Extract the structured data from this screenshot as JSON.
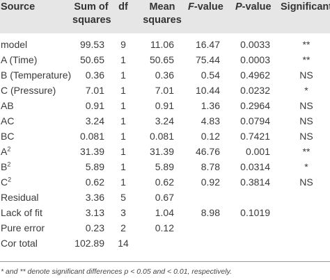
{
  "columns": {
    "source": "Source",
    "sum_of_squares_1": "Sum of",
    "sum_of_squares_2": "squares",
    "df": "df",
    "mean_squares_1": "Mean",
    "mean_squares_2": "squares",
    "f_value_letter": "F",
    "f_value_rest": "-value",
    "p_value_letter": "P",
    "p_value_rest": "-value",
    "significant": "Significant"
  },
  "rows": [
    {
      "source": "model",
      "sup": "",
      "ss": "99.53",
      "df": "9",
      "ms": "11.06",
      "f": "16.47",
      "p": "0.0033",
      "sig": "**"
    },
    {
      "source": "A (Time)",
      "sup": "",
      "ss": "50.65",
      "df": "1",
      "ms": "50.65",
      "f": "75.44",
      "p": "0.0003",
      "sig": "**"
    },
    {
      "source": "B (Temperature)",
      "sup": "",
      "ss": "0.36",
      "df": "1",
      "ms": "0.36",
      "f": "0.54",
      "p": "0.4962",
      "sig": "NS"
    },
    {
      "source": "C (Pressure)",
      "sup": "",
      "ss": "7.01",
      "df": "1",
      "ms": "7.01",
      "f": "10.44",
      "p": "0.0232",
      "sig": "*"
    },
    {
      "source": "AB",
      "sup": "",
      "ss": "0.91",
      "df": "1",
      "ms": "0.91",
      "f": "1.36",
      "p": "0.2964",
      "sig": "NS"
    },
    {
      "source": "AC",
      "sup": "",
      "ss": "3.24",
      "df": "1",
      "ms": "3.24",
      "f": "4.83",
      "p": "0.0794",
      "sig": "NS"
    },
    {
      "source": "BC",
      "sup": "",
      "ss": "0.081",
      "df": "1",
      "ms": "0.081",
      "f": "0.12",
      "p": "0.7421",
      "sig": "NS"
    },
    {
      "source": "A",
      "sup": "2",
      "ss": "31.39",
      "df": "1",
      "ms": "31.39",
      "f": "46.76",
      "p": "0.001",
      "sig": "**"
    },
    {
      "source": "B",
      "sup": "2",
      "ss": "5.89",
      "df": "1",
      "ms": "5.89",
      "f": "8.78",
      "p": "0.0314",
      "sig": "*"
    },
    {
      "source": "C",
      "sup": "2",
      "ss": "0.62",
      "df": "1",
      "ms": "0.62",
      "f": "0.92",
      "p": "0.3814",
      "sig": "NS"
    },
    {
      "source": "Residual",
      "sup": "",
      "ss": "3.36",
      "df": "5",
      "ms": "0.67",
      "f": "",
      "p": "",
      "sig": ""
    },
    {
      "source": "Lack of fit",
      "sup": "",
      "ss": "3.13",
      "df": "3",
      "ms": "1.04",
      "f": "8.98",
      "p": "0.1019",
      "sig": ""
    },
    {
      "source": "Pure error",
      "sup": "",
      "ss": "0.23",
      "df": "2",
      "ms": "0.12",
      "f": "",
      "p": "",
      "sig": ""
    },
    {
      "source": "Cor total",
      "sup": "",
      "ss": "102.89",
      "df": "14",
      "ms": "",
      "f": "",
      "p": "",
      "sig": ""
    }
  ],
  "footnote": "* and ** denote significant differences p < 0.05 and < 0.01, respectively."
}
